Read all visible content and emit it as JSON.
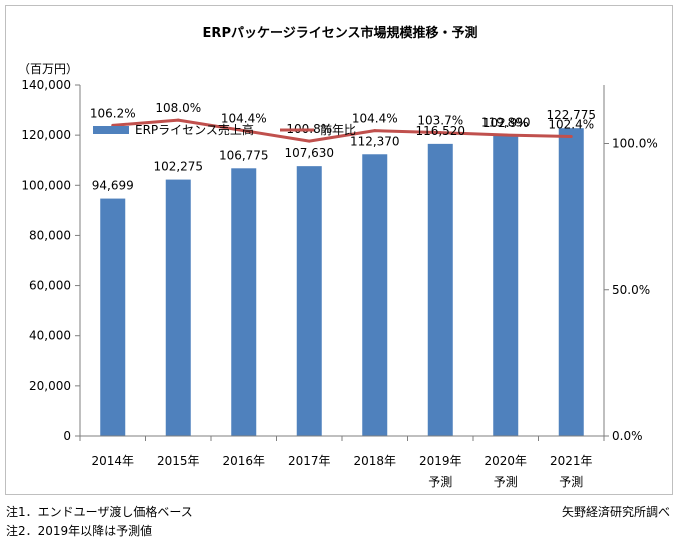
{
  "chart_data": {
    "type": "bar+line",
    "title": "ERPパッケージライセンス市場規模推移・予測",
    "y_left_unit_label": "（百万円）",
    "categories": [
      "2014年",
      "2015年",
      "2016年",
      "2017年",
      "2018年",
      "2019年",
      "2020年",
      "2021年"
    ],
    "category_sublabels": [
      "",
      "",
      "",
      "",
      "",
      "予測",
      "予測",
      "予測"
    ],
    "y_left": {
      "min": 0,
      "max": 140000,
      "step": 20000,
      "tick_labels": [
        "0",
        "20,000",
        "40,000",
        "60,000",
        "80,000",
        "100,000",
        "120,000",
        "140,000"
      ]
    },
    "y_right": {
      "min": 0,
      "max": 120,
      "ticks": [
        0,
        50,
        100
      ],
      "tick_labels": [
        "0.0%",
        "50.0%",
        "100.0%"
      ]
    },
    "series": [
      {
        "name": "ERPライセンス売上高",
        "type": "bar",
        "axis": "left",
        "color": "#4f81bd",
        "values": [
          94699,
          102275,
          106775,
          107630,
          112370,
          116520,
          119890,
          122775
        ],
        "labels": [
          "94,699",
          "102,275",
          "106,775",
          "107,630",
          "112,370",
          "116,520",
          "119,890",
          "122,775"
        ]
      },
      {
        "name": "前年比",
        "type": "line",
        "axis": "right",
        "color": "#c0504d",
        "values": [
          106.2,
          108.0,
          104.4,
          100.8,
          104.4,
          103.7,
          102.9,
          102.4
        ],
        "labels": [
          "106.2%",
          "108.0%",
          "104.4%",
          "100.8%",
          "104.4%",
          "103.7%",
          "102.9%",
          "102.4%"
        ]
      }
    ],
    "legend": {
      "position": "top-left inside plot"
    },
    "grid": false
  },
  "notes": {
    "note1": "注1．エンドユーザ渡し価格ベース",
    "note2": "注2．2019年以降は予測値",
    "source": "矢野経済研究所調べ"
  }
}
